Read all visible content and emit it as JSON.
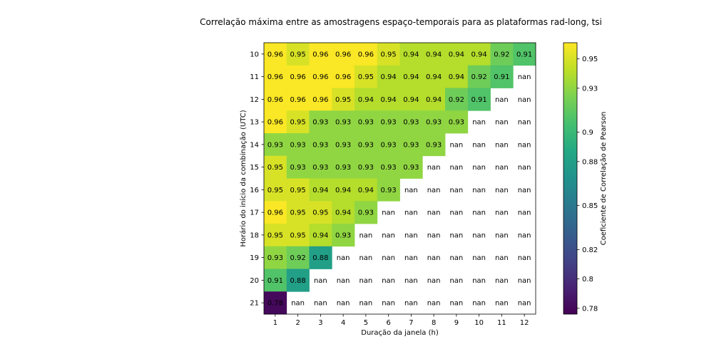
{
  "chart_data": {
    "type": "heatmap",
    "title": "Correlação máxima entre as amostragens espaço-temporais para as plataformas rad-long, tsi",
    "xlabel": "Duração da janela (h)",
    "ylabel": "Horário do início da combinação (UTC)",
    "x_categories": [
      "1",
      "2",
      "3",
      "4",
      "5",
      "6",
      "7",
      "8",
      "9",
      "10",
      "11",
      "12"
    ],
    "y_categories": [
      "10",
      "11",
      "12",
      "13",
      "14",
      "15",
      "16",
      "17",
      "18",
      "19",
      "20",
      "21"
    ],
    "values": [
      [
        0.96,
        0.95,
        0.96,
        0.96,
        0.96,
        0.95,
        0.94,
        0.94,
        0.94,
        0.94,
        0.92,
        0.91
      ],
      [
        0.96,
        0.96,
        0.96,
        0.96,
        0.95,
        0.94,
        0.94,
        0.94,
        0.94,
        0.92,
        0.91,
        null
      ],
      [
        0.96,
        0.96,
        0.96,
        0.95,
        0.94,
        0.94,
        0.94,
        0.94,
        0.92,
        0.91,
        null,
        null
      ],
      [
        0.96,
        0.95,
        0.93,
        0.93,
        0.93,
        0.93,
        0.93,
        0.93,
        0.93,
        null,
        null,
        null
      ],
      [
        0.93,
        0.93,
        0.93,
        0.93,
        0.93,
        0.93,
        0.93,
        0.93,
        null,
        null,
        null,
        null
      ],
      [
        0.95,
        0.93,
        0.93,
        0.93,
        0.93,
        0.93,
        0.93,
        null,
        null,
        null,
        null,
        null
      ],
      [
        0.95,
        0.95,
        0.94,
        0.94,
        0.94,
        0.93,
        null,
        null,
        null,
        null,
        null,
        null
      ],
      [
        0.96,
        0.95,
        0.95,
        0.94,
        0.93,
        null,
        null,
        null,
        null,
        null,
        null,
        null
      ],
      [
        0.95,
        0.95,
        0.94,
        0.93,
        null,
        null,
        null,
        null,
        null,
        null,
        null,
        null
      ],
      [
        0.93,
        0.92,
        0.88,
        null,
        null,
        null,
        null,
        null,
        null,
        null,
        null,
        null
      ],
      [
        0.91,
        0.88,
        null,
        null,
        null,
        null,
        null,
        null,
        null,
        null,
        null,
        null
      ],
      [
        0.78,
        null,
        null,
        null,
        null,
        null,
        null,
        null,
        null,
        null,
        null,
        null
      ]
    ],
    "cell_labels": [
      [
        "0.96",
        "0.95",
        "0.96",
        "0.96",
        "0.96",
        "0.95",
        "0.94",
        "0.94",
        "0.94",
        "0.94",
        "0.92",
        "0.91"
      ],
      [
        "0.96",
        "0.96",
        "0.96",
        "0.96",
        "0.95",
        "0.94",
        "0.94",
        "0.94",
        "0.94",
        "0.92",
        "0.91",
        "nan"
      ],
      [
        "0.96",
        "0.96",
        "0.96",
        "0.95",
        "0.94",
        "0.94",
        "0.94",
        "0.94",
        "0.92",
        "0.91",
        "nan",
        "nan"
      ],
      [
        "0.96",
        "0.95",
        "0.93",
        "0.93",
        "0.93",
        "0.93",
        "0.93",
        "0.93",
        "0.93",
        "nan",
        "nan",
        "nan"
      ],
      [
        "0.93",
        "0.93",
        "0.93",
        "0.93",
        "0.93",
        "0.93",
        "0.93",
        "0.93",
        "nan",
        "nan",
        "nan",
        "nan"
      ],
      [
        "0.95",
        "0.93",
        "0.93",
        "0.93",
        "0.93",
        "0.93",
        "0.93",
        "nan",
        "nan",
        "nan",
        "nan",
        "nan"
      ],
      [
        "0.95",
        "0.95",
        "0.94",
        "0.94",
        "0.94",
        "0.93",
        "nan",
        "nan",
        "nan",
        "nan",
        "nan",
        "nan"
      ],
      [
        "0.96",
        "0.95",
        "0.95",
        "0.94",
        "0.93",
        "nan",
        "nan",
        "nan",
        "nan",
        "nan",
        "nan",
        "nan"
      ],
      [
        "0.95",
        "0.95",
        "0.94",
        "0.93",
        "nan",
        "nan",
        "nan",
        "nan",
        "nan",
        "nan",
        "nan",
        "nan"
      ],
      [
        "0.93",
        "0.92",
        "0.88",
        "nan",
        "nan",
        "nan",
        "nan",
        "nan",
        "nan",
        "nan",
        "nan",
        "nan"
      ],
      [
        "0.91",
        "0.88",
        "nan",
        "nan",
        "nan",
        "nan",
        "nan",
        "nan",
        "nan",
        "nan",
        "nan",
        "nan"
      ],
      [
        "0.78",
        "nan",
        "nan",
        "nan",
        "nan",
        "nan",
        "nan",
        "nan",
        "nan",
        "nan",
        "nan",
        "nan"
      ]
    ],
    "colorbar": {
      "label": "Coeficiente de Correlação de Pearson",
      "range": [
        0.776,
        0.961
      ],
      "ticks": [
        0.78,
        0.8,
        0.82,
        0.85,
        0.88,
        0.9,
        0.93,
        0.95
      ],
      "tick_labels": [
        "0.78",
        "0.8",
        "0.82",
        "0.85",
        "0.88",
        "0.9",
        "0.93",
        "0.95"
      ],
      "colormap": "viridis"
    },
    "grid": false
  }
}
